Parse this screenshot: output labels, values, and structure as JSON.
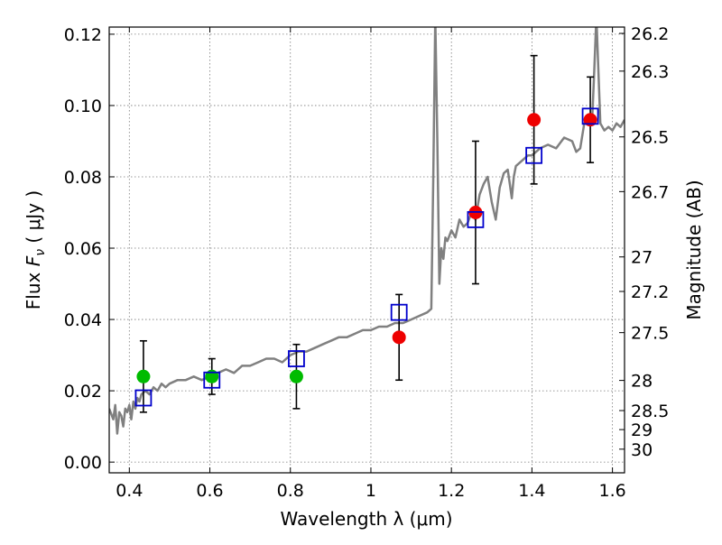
{
  "chart_data": {
    "type": "scatter",
    "xlabel": "Wavelength  λ (μm)",
    "ylabel_prefix": "Flux ",
    "ylabel_var": "F",
    "ylabel_sub": "ν",
    "ylabel_suffix": "  ( μJy )",
    "y2label": "Magnitude (AB)",
    "xlim": [
      0.35,
      1.63
    ],
    "ylim": [
      -0.003,
      0.122
    ],
    "grid": true,
    "xticks": [
      0.4,
      0.6,
      0.8,
      1.0,
      1.2,
      1.4,
      1.6
    ],
    "xtick_labels": [
      "0.4",
      "0.6",
      "0.8",
      "1",
      "1.2",
      "1.4",
      "1.6"
    ],
    "yticks": [
      0.0,
      0.02,
      0.04,
      0.06,
      0.08,
      0.1,
      0.12
    ],
    "ytick_labels": [
      "0.00",
      "0.02",
      "0.04",
      "0.06",
      "0.08",
      "0.10",
      "0.12"
    ],
    "y2ticks": [
      26.2,
      26.3,
      26.5,
      26.7,
      27,
      27.2,
      27.5,
      28,
      28.5,
      29,
      30
    ],
    "y2tick_labels": [
      "26.2",
      "26.3",
      "26.5",
      "26.7",
      "27",
      "27.2",
      "27.5",
      "28",
      "28.5",
      "29",
      "30"
    ],
    "colors": {
      "model": "#808080",
      "model_points": "#0000cc",
      "optical": "#00bb00",
      "infrared": "#ee0000",
      "errorbar": "#000000",
      "grid": "#7a7a7a"
    },
    "series": [
      {
        "kind": "line",
        "x": [
          0.35,
          0.36,
          0.365,
          0.37,
          0.375,
          0.38,
          0.385,
          0.39,
          0.395,
          0.4,
          0.405,
          0.41,
          0.415,
          0.42,
          0.425,
          0.43,
          0.44,
          0.45,
          0.46,
          0.47,
          0.48,
          0.49,
          0.5,
          0.52,
          0.54,
          0.56,
          0.58,
          0.6,
          0.62,
          0.64,
          0.66,
          0.68,
          0.7,
          0.72,
          0.74,
          0.76,
          0.78,
          0.8,
          0.82,
          0.84,
          0.86,
          0.88,
          0.9,
          0.92,
          0.94,
          0.96,
          0.98,
          1.0,
          1.02,
          1.04,
          1.06,
          1.08,
          1.1,
          1.12,
          1.14,
          1.15,
          1.155,
          1.16,
          1.165,
          1.17,
          1.175,
          1.18,
          1.185,
          1.19,
          1.2,
          1.21,
          1.22,
          1.23,
          1.24,
          1.25,
          1.26,
          1.27,
          1.28,
          1.29,
          1.3,
          1.31,
          1.32,
          1.33,
          1.34,
          1.345,
          1.35,
          1.355,
          1.36,
          1.37,
          1.38,
          1.39,
          1.4,
          1.42,
          1.44,
          1.46,
          1.48,
          1.5,
          1.51,
          1.52,
          1.53,
          1.54,
          1.55,
          1.555,
          1.56,
          1.565,
          1.57,
          1.58,
          1.59,
          1.6,
          1.61,
          1.62,
          1.63
        ],
        "y": [
          0.015,
          0.012,
          0.016,
          0.008,
          0.014,
          0.013,
          0.01,
          0.015,
          0.014,
          0.016,
          0.012,
          0.017,
          0.015,
          0.018,
          0.017,
          0.019,
          0.02,
          0.019,
          0.021,
          0.02,
          0.022,
          0.021,
          0.022,
          0.023,
          0.023,
          0.024,
          0.023,
          0.024,
          0.025,
          0.026,
          0.025,
          0.027,
          0.027,
          0.028,
          0.029,
          0.029,
          0.028,
          0.03,
          0.031,
          0.031,
          0.032,
          0.033,
          0.034,
          0.035,
          0.035,
          0.036,
          0.037,
          0.037,
          0.038,
          0.038,
          0.039,
          0.039,
          0.04,
          0.041,
          0.042,
          0.043,
          0.08,
          0.125,
          0.09,
          0.05,
          0.06,
          0.057,
          0.063,
          0.062,
          0.065,
          0.063,
          0.068,
          0.066,
          0.067,
          0.07,
          0.068,
          0.075,
          0.078,
          0.08,
          0.073,
          0.068,
          0.077,
          0.081,
          0.082,
          0.078,
          0.074,
          0.08,
          0.083,
          0.084,
          0.085,
          0.086,
          0.086,
          0.088,
          0.089,
          0.088,
          0.091,
          0.09,
          0.087,
          0.088,
          0.095,
          0.096,
          0.097,
          0.11,
          0.125,
          0.11,
          0.095,
          0.093,
          0.094,
          0.093,
          0.095,
          0.094,
          0.096
        ]
      },
      {
        "kind": "squares",
        "x": [
          0.435,
          0.605,
          0.815,
          1.07,
          1.26,
          1.405,
          1.545
        ],
        "y": [
          0.018,
          0.023,
          0.029,
          0.042,
          0.068,
          0.086,
          0.097
        ]
      },
      {
        "kind": "circles-optical",
        "x": [
          0.435,
          0.605,
          0.815
        ],
        "y": [
          0.024,
          0.024,
          0.024
        ],
        "err": [
          0.01,
          0.005,
          0.009
        ]
      },
      {
        "kind": "circles-infrared",
        "x": [
          1.07,
          1.26,
          1.405,
          1.545
        ],
        "y": [
          0.035,
          0.07,
          0.096,
          0.096
        ],
        "err": [
          0.012,
          0.02,
          0.018,
          0.012
        ]
      }
    ]
  }
}
